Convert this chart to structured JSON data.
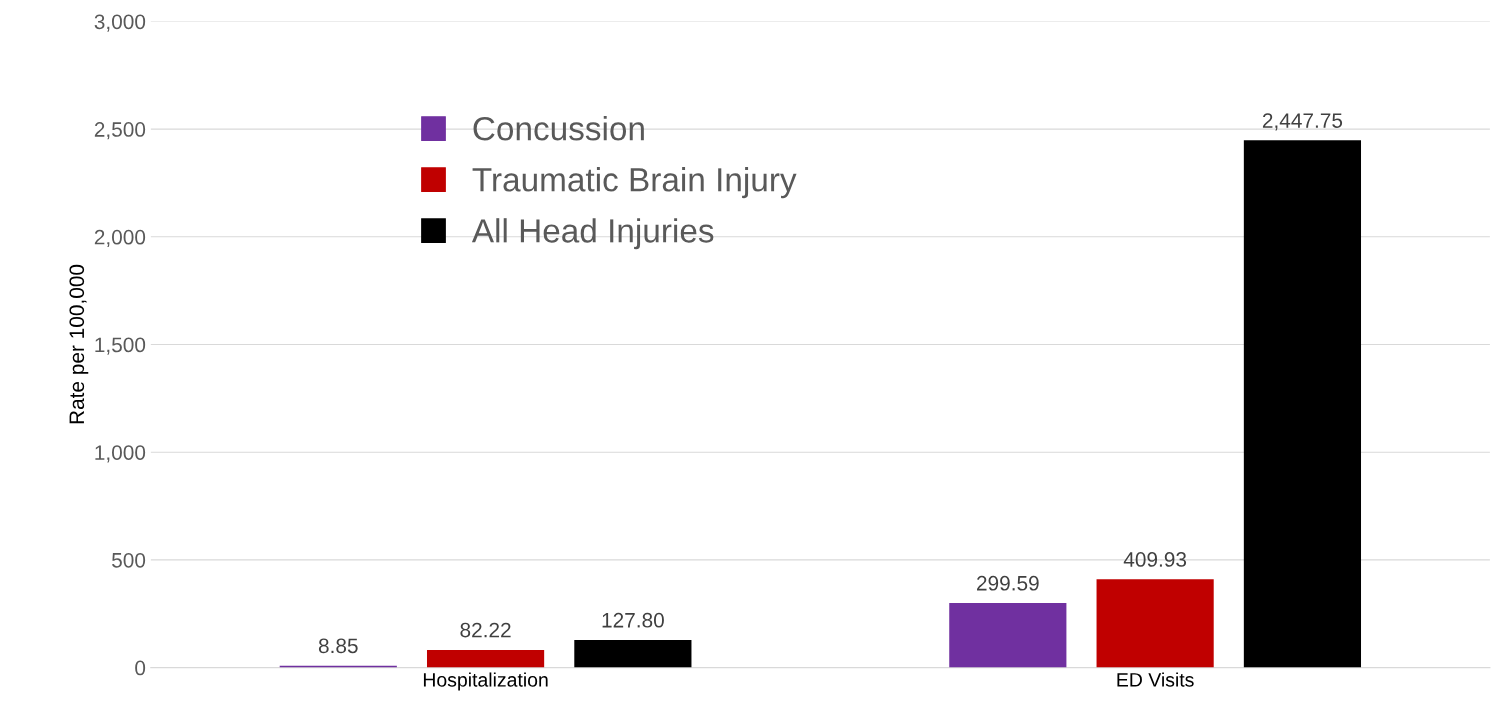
{
  "chart_data": {
    "type": "bar",
    "categories": [
      "Hospitalization",
      "ED Visits"
    ],
    "ylabel": "Rate per 100,000",
    "series": [
      {
        "name": "Concussion",
        "color": "#7030a0",
        "values": [
          8.85,
          299.59
        ],
        "value_labels": [
          "8.85",
          "299.59"
        ]
      },
      {
        "name": "Traumatic Brain Injury",
        "color": "#c00000",
        "values": [
          82.22,
          409.93
        ],
        "value_labels": [
          "82.22",
          "409.93"
        ]
      },
      {
        "name": "All Head Injuries",
        "color": "#000000",
        "values": [
          127.8,
          2447.75
        ],
        "value_labels": [
          "127.80",
          "2,447.75"
        ]
      }
    ],
    "ylim": [
      0,
      3000
    ],
    "yticks": [
      0,
      {
        "value": 500,
        "label": "500"
      },
      {
        "value": 1000,
        "label": "1,000"
      },
      {
        "value": 1500,
        "label": "1,500"
      },
      {
        "value": 2000,
        "label": "2,000"
      },
      {
        "value": 2500,
        "label": "2,500"
      },
      {
        "value": 3000,
        "label": "3,000"
      }
    ],
    "grid": "y",
    "legend": "top left"
  }
}
